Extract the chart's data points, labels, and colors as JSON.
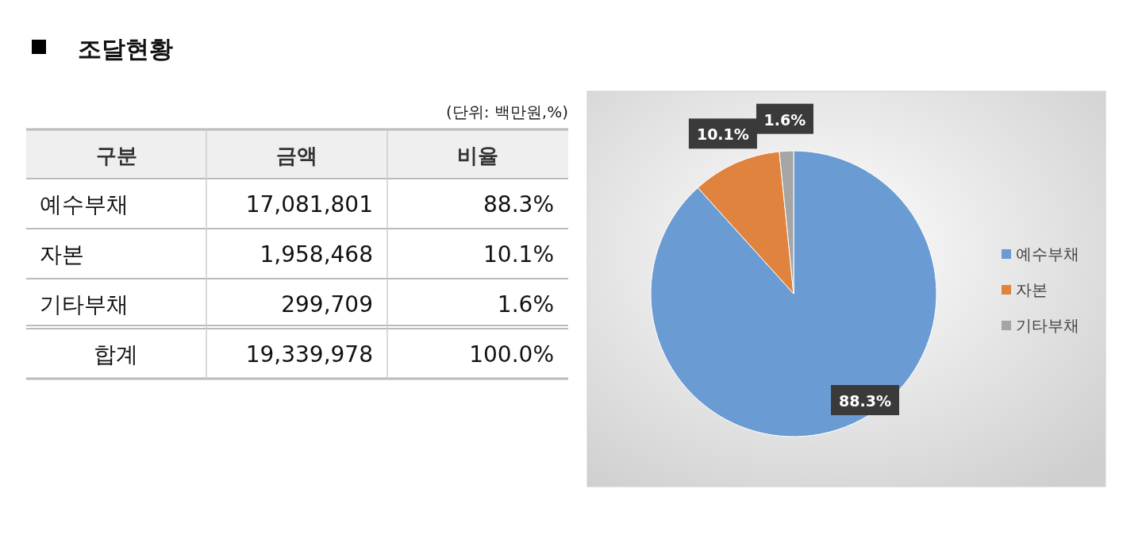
{
  "chart_data": [
    {
      "type": "other",
      "title": "조달현황",
      "subtitle": "(단위: 백만원,%)",
      "annotations": [
        "구분",
        "금액",
        "비율",
        "예수부채",
        "17,081,801",
        "88.3%",
        "자본",
        "1,958,468",
        "10.1%",
        "기타부채",
        "299,709",
        "1.6%",
        "합계",
        "19,339,978",
        "100.0%"
      ]
    },
    {
      "type": "pie",
      "categories": [
        "예수부채",
        "자본",
        "기타부채"
      ],
      "values": [
        88.3,
        10.1,
        1.6
      ],
      "colors": [
        "#6a9bd2",
        "#e0833f",
        "#a5a5a5"
      ],
      "value_labels": [
        "88.3%",
        "10.1%",
        "1.6%"
      ],
      "legend": "right"
    }
  ]
}
